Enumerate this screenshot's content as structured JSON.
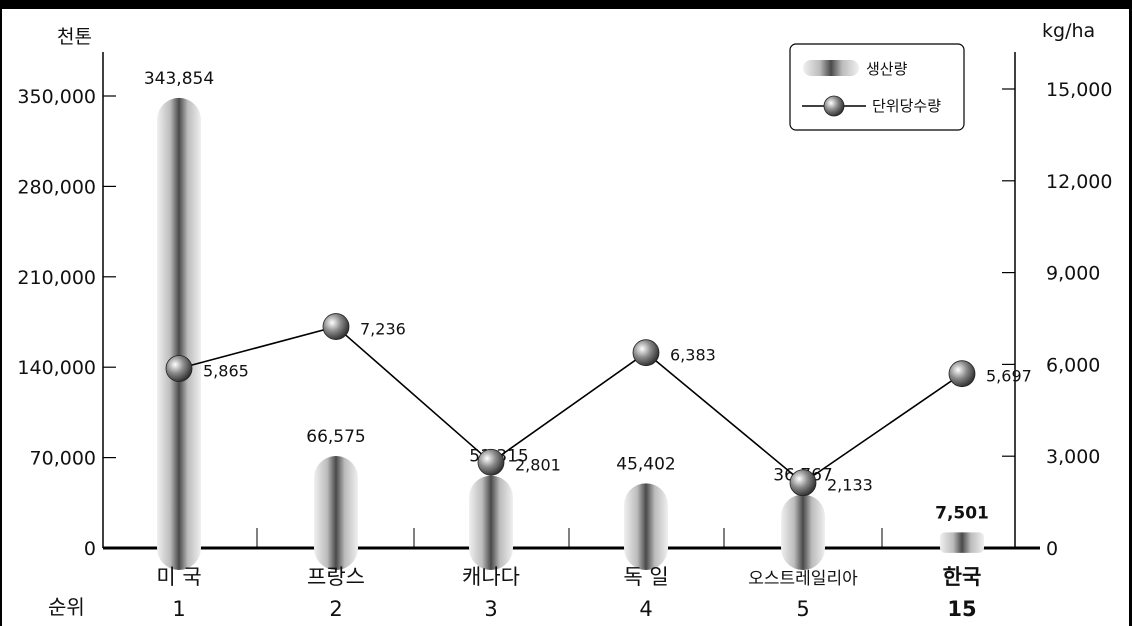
{
  "colors": {
    "frame": "#000000",
    "bar_dark": "#555555",
    "bar_light": "#e6e6e6",
    "line": "#000000",
    "background": "#ffffff"
  },
  "chart_data": {
    "type": "bar",
    "left_axis_unit": "천톤",
    "right_axis_unit": "kg/ha",
    "rank_label": "순위",
    "left_ylim": [
      0,
      350000
    ],
    "left_ticks": [
      "0",
      "70,000",
      "140,000",
      "210,000",
      "280,000",
      "350,000"
    ],
    "right_ylim": [
      0,
      15000
    ],
    "right_ticks": [
      "0",
      "3,000",
      "6,000",
      "9,000",
      "12,000",
      "15,000"
    ],
    "categories": [
      "미 국",
      "프랑스",
      "캐나다",
      "독 일",
      "오스트레일리아",
      "한국"
    ],
    "ranks": [
      "1",
      "2",
      "3",
      "4",
      "5",
      "15"
    ],
    "highlight_index": 5,
    "series": [
      {
        "name": "생산량",
        "type": "bar",
        "axis": "left",
        "values": [
          343854,
          66575,
          51315,
          45402,
          36767,
          7501
        ],
        "labels": [
          "343,854",
          "66,575",
          "51,315",
          "45,402",
          "36,767",
          "7,501"
        ]
      },
      {
        "name": "단위당수량",
        "type": "line",
        "axis": "right",
        "values": [
          5865,
          7236,
          2801,
          6383,
          2133,
          5697
        ],
        "labels": [
          "5,865",
          "7,236",
          "2,801",
          "6,383",
          "2,133",
          "5,697"
        ]
      }
    ],
    "legend": [
      "생산량",
      "단위당수량"
    ],
    "legend_position": "top-right",
    "grid": false
  }
}
